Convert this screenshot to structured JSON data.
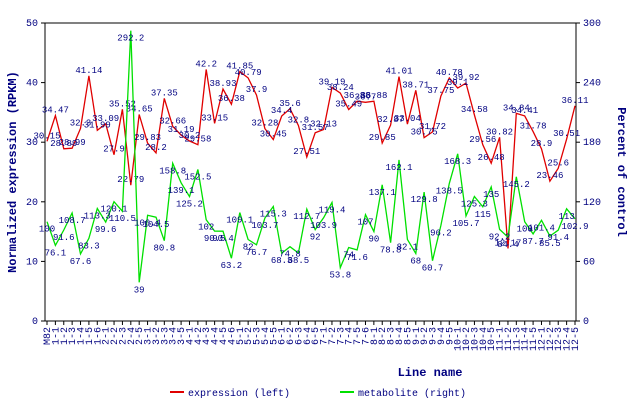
{
  "chart_data": {
    "type": "line",
    "x_label": "Line name",
    "y_label": "Normalized expression (RPKM)",
    "y2_label": "Percent of control",
    "categories": [
      "M82",
      "1-1",
      "1-2",
      "1-3",
      "1-4",
      "1-5",
      "1-6",
      "2-1",
      "2-2",
      "2-3",
      "2-4",
      "2-5",
      "3-1",
      "3-2",
      "3-3",
      "3-4",
      "3-5",
      "4-1",
      "4-2",
      "4-3",
      "4-4",
      "4-5",
      "4-6",
      "5-1",
      "5-2",
      "5-3",
      "5-4",
      "5-5",
      "6-1",
      "6-2",
      "6-3",
      "6-4",
      "6-5",
      "7-1",
      "7-2",
      "7-3",
      "7-4",
      "7-5",
      "7-6",
      "8-1",
      "8-2",
      "8-3",
      "8-4",
      "8-5",
      "9-1",
      "9-2",
      "9-3",
      "9-4",
      "9-5",
      "10-1",
      "10-2",
      "10-3",
      "10-4",
      "10-5",
      "11-1",
      "11-2",
      "11-3",
      "11-4",
      "11-5",
      "12-1",
      "12-2",
      "12-3",
      "12-4",
      "12-5"
    ],
    "series": [
      {
        "name": "expression (left)",
        "color": "#e00000",
        "axis": "y",
        "values": [
          30.15,
          34.47,
          28.89,
          28.99,
          32.3,
          41.14,
          31.99,
          33.09,
          27.9,
          35.52,
          22.79,
          34.65,
          29.83,
          28.2,
          37.35,
          32.66,
          31.19,
          30.2,
          29.58,
          42.2,
          33.15,
          38.93,
          36.38,
          41.85,
          40.79,
          37.9,
          32.28,
          30.45,
          34.4,
          35.6,
          32.8,
          27.51,
          31.57,
          32.13,
          39.19,
          38.24,
          35.49,
          36.88,
          36.7,
          36.88,
          29.85,
          32.87,
          41.01,
          33.04,
          38.71,
          30.75,
          31.72,
          37.75,
          40.78,
          39.1,
          39.92,
          34.58,
          29.56,
          26.48,
          30.82,
          12.17,
          34.84,
          34.41,
          31.78,
          28.9,
          23.46,
          25.6,
          30.51,
          36.11
        ]
      },
      {
        "name": "metabolite (right)",
        "color": "#00e000",
        "axis": "y2",
        "values": [
          100,
          76.1,
          91.6,
          108.7,
          67.6,
          83.3,
          113.3,
          99.6,
          120.1,
          110.5,
          292.2,
          39,
          106.4,
          104.5,
          80.8,
          158.8,
          139.1,
          125.2,
          152.5,
          102,
          90.5,
          90.4,
          63.2,
          109.1,
          82,
          76.7,
          103.7,
          115.3,
          68.3,
          74.8,
          68.5,
          112.7,
          92,
          103.9,
          119.4,
          53.8,
          74,
          71.6,
          107,
          90,
          137.1,
          78.8,
          162.1,
          82.1,
          68,
          129.8,
          60.7,
          96.2,
          138.5,
          168.3,
          105.7,
          125.3,
          115,
          135,
          92.2,
          84.4,
          145.2,
          100,
          87.7,
          101.4,
          85.5,
          91.4,
          113,
          102.9
        ]
      }
    ],
    "ylim": [
      0,
      50
    ],
    "yticks": [
      0,
      10,
      20,
      30,
      40,
      50
    ],
    "y2lim": [
      0,
      300
    ],
    "y2ticks": [
      0,
      60,
      120,
      180,
      240,
      300
    ],
    "legend": "bottom"
  }
}
